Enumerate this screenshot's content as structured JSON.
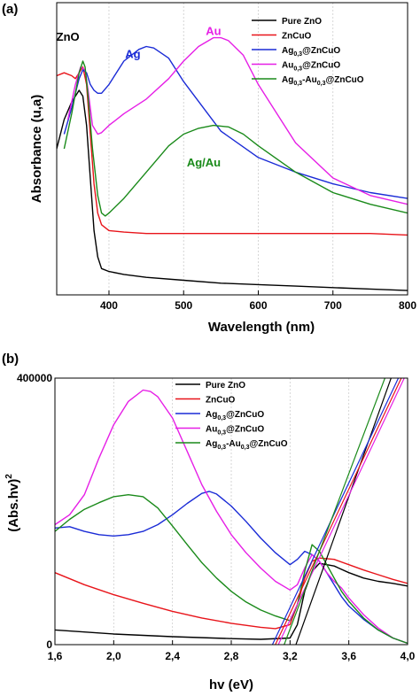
{
  "colors": {
    "pure_zno": "#000000",
    "zncuo": "#e8141a",
    "ag_zncuo": "#1a2bd6",
    "au_zncuo": "#e61fe6",
    "agau_zncuo": "#1a8a1a",
    "grid": "#cccccc"
  },
  "chart_data": [
    {
      "type": "line",
      "panel_label": "(a)",
      "xlabel": "Wavelength (nm)",
      "ylabel": "Absorbance (u,a)",
      "xlim": [
        330,
        800
      ],
      "ylim": [
        0,
        1
      ],
      "x_ticks": [
        400,
        500,
        600,
        700,
        800
      ],
      "x_tick_labels": [
        "400",
        "500",
        "600",
        "700",
        "800"
      ],
      "grid": "vertical dotted",
      "legend_position": "top-right",
      "legend": [
        {
          "label": "Pure ZnO",
          "color_key": "pure_zno"
        },
        {
          "label": "ZnCuO",
          "color_key": "zncuo"
        },
        {
          "label_parts": [
            "Ag",
            "0,3",
            "@ZnCuO"
          ],
          "color_key": "ag_zncuo"
        },
        {
          "label_parts": [
            "Au",
            "0,3",
            "@ZnCuO"
          ],
          "color_key": "au_zncuo"
        },
        {
          "label_parts": [
            "Ag",
            "0,3",
            "-Au",
            "0,3",
            "@ZnCuO"
          ],
          "color_key": "agau_zncuo"
        }
      ],
      "annotations": [
        {
          "text": "ZnO",
          "x": 345,
          "y": 0.87,
          "color_key": "pure_zno"
        },
        {
          "text": "Ag",
          "x": 432,
          "y": 0.81,
          "color_key": "ag_zncuo"
        },
        {
          "text": "Au",
          "x": 540,
          "y": 0.89,
          "color_key": "au_zncuo"
        },
        {
          "text": "Ag/Au",
          "x": 527,
          "y": 0.44,
          "color_key": "agau_zncuo"
        }
      ],
      "series": [
        {
          "name": "Pure ZnO",
          "color_key": "pure_zno",
          "x": [
            330,
            340,
            350,
            355,
            360,
            365,
            370,
            375,
            380,
            385,
            390,
            400,
            420,
            450,
            500,
            550,
            600,
            650,
            700,
            750,
            800
          ],
          "y": [
            0.5,
            0.6,
            0.66,
            0.68,
            0.7,
            0.68,
            0.58,
            0.4,
            0.22,
            0.13,
            0.09,
            0.08,
            0.07,
            0.06,
            0.05,
            0.04,
            0.035,
            0.03,
            0.025,
            0.02,
            0.015
          ]
        },
        {
          "name": "ZnCuO",
          "color_key": "zncuo",
          "x": [
            330,
            340,
            350,
            355,
            360,
            365,
            370,
            375,
            380,
            385,
            390,
            400,
            420,
            450,
            500,
            550,
            600,
            650,
            700,
            750,
            800
          ],
          "y": [
            0.75,
            0.76,
            0.75,
            0.74,
            0.76,
            0.78,
            0.72,
            0.55,
            0.38,
            0.28,
            0.24,
            0.22,
            0.215,
            0.21,
            0.21,
            0.21,
            0.21,
            0.21,
            0.21,
            0.21,
            0.205
          ]
        },
        {
          "name": "Ag@ZnCuO",
          "color_key": "ag_zncuo",
          "x": [
            340,
            350,
            360,
            365,
            370,
            375,
            380,
            385,
            390,
            400,
            420,
            440,
            450,
            460,
            480,
            500,
            550,
            600,
            650,
            700,
            750,
            800
          ],
          "y": [
            0.55,
            0.64,
            0.74,
            0.77,
            0.76,
            0.72,
            0.7,
            0.69,
            0.69,
            0.72,
            0.8,
            0.84,
            0.85,
            0.845,
            0.81,
            0.73,
            0.56,
            0.47,
            0.42,
            0.38,
            0.35,
            0.33
          ]
        },
        {
          "name": "Au@ZnCuO",
          "color_key": "au_zncuo",
          "x": [
            345,
            355,
            362,
            368,
            372,
            378,
            385,
            390,
            400,
            420,
            450,
            480,
            500,
            520,
            540,
            550,
            560,
            580,
            600,
            650,
            700,
            750,
            800
          ],
          "y": [
            0.6,
            0.72,
            0.78,
            0.77,
            0.7,
            0.58,
            0.55,
            0.555,
            0.58,
            0.62,
            0.67,
            0.74,
            0.8,
            0.85,
            0.88,
            0.88,
            0.87,
            0.82,
            0.72,
            0.52,
            0.4,
            0.34,
            0.31
          ]
        },
        {
          "name": "Ag-Au@ZnCuO",
          "color_key": "agau_zncuo",
          "x": [
            340,
            350,
            360,
            365,
            368,
            372,
            378,
            385,
            390,
            395,
            400,
            420,
            450,
            480,
            500,
            520,
            540,
            560,
            580,
            600,
            650,
            700,
            750,
            800
          ],
          "y": [
            0.5,
            0.62,
            0.76,
            0.8,
            0.78,
            0.68,
            0.5,
            0.34,
            0.28,
            0.27,
            0.28,
            0.33,
            0.42,
            0.51,
            0.55,
            0.57,
            0.58,
            0.575,
            0.55,
            0.51,
            0.42,
            0.35,
            0.31,
            0.28
          ]
        }
      ]
    },
    {
      "type": "line",
      "panel_label": "(b)",
      "xlabel": "hv (eV)",
      "ylabel_parts": [
        "(Abs.hv)",
        "2"
      ],
      "xlim": [
        1.6,
        4.0
      ],
      "ylim": [
        0,
        400000
      ],
      "x_ticks": [
        1.6,
        2.0,
        2.4,
        2.8,
        3.2,
        3.6,
        4.0
      ],
      "x_tick_labels": [
        "1,6",
        "2,0",
        "2,4",
        "2,8",
        "3,2",
        "3,6",
        "4,0"
      ],
      "y_ticks": [
        0,
        400000
      ],
      "y_tick_labels": [
        "0",
        "400000"
      ],
      "grid": "vertical dotted",
      "legend_position": "top-center",
      "legend": [
        {
          "label": "Pure ZnO",
          "color_key": "pure_zno"
        },
        {
          "label": "ZnCuO",
          "color_key": "zncuo"
        },
        {
          "label_parts": [
            "Ag",
            "0,3",
            "@ZnCuO"
          ],
          "color_key": "ag_zncuo"
        },
        {
          "label_parts": [
            "Au",
            "0,3",
            "@ZnCuO"
          ],
          "color_key": "au_zncuo"
        },
        {
          "label_parts": [
            "Ag",
            "0,3",
            "-Au",
            "0,3",
            "@ZnCuO"
          ],
          "color_key": "agau_zncuo"
        }
      ],
      "series": [
        {
          "name": "Pure ZnO",
          "color_key": "pure_zno",
          "x": [
            1.6,
            2.0,
            2.4,
            2.8,
            3.0,
            3.2,
            3.25,
            3.3,
            3.35,
            3.4,
            3.5,
            3.6,
            3.7,
            3.8,
            3.9,
            4.0
          ],
          "y": [
            22000,
            16000,
            12000,
            9000,
            8000,
            10000,
            30000,
            80000,
            110000,
            122000,
            118000,
            108000,
            100000,
            95000,
            92000,
            88000
          ]
        },
        {
          "name": "ZnCuO",
          "color_key": "zncuo",
          "x": [
            1.6,
            1.8,
            2.0,
            2.2,
            2.4,
            2.6,
            2.8,
            3.0,
            3.1,
            3.2,
            3.25,
            3.3,
            3.35,
            3.4,
            3.5,
            3.6,
            3.7,
            3.8,
            3.9,
            4.0
          ],
          "y": [
            108000,
            90000,
            75000,
            62000,
            50000,
            40000,
            32000,
            26000,
            24000,
            30000,
            60000,
            100000,
            125000,
            130000,
            128000,
            120000,
            112000,
            105000,
            98000,
            92000
          ]
        },
        {
          "name": "Ag@ZnCuO",
          "color_key": "ag_zncuo",
          "x": [
            1.6,
            1.7,
            1.8,
            1.9,
            2.0,
            2.1,
            2.2,
            2.3,
            2.4,
            2.5,
            2.6,
            2.65,
            2.7,
            2.8,
            2.9,
            3.0,
            3.1,
            3.2,
            3.25,
            3.3,
            3.35,
            3.4,
            3.45,
            3.5,
            3.55,
            3.6,
            3.7,
            3.8,
            3.9,
            4.0
          ],
          "y": [
            175000,
            177000,
            170000,
            165000,
            163000,
            165000,
            170000,
            180000,
            195000,
            212000,
            227000,
            230000,
            226000,
            208000,
            185000,
            160000,
            138000,
            120000,
            128000,
            140000,
            135000,
            125000,
            108000,
            90000,
            72000,
            58000,
            38000,
            22000,
            10000,
            2000
          ]
        },
        {
          "name": "Au@ZnCuO",
          "color_key": "au_zncuo",
          "x": [
            1.6,
            1.7,
            1.8,
            1.9,
            2.0,
            2.1,
            2.2,
            2.25,
            2.3,
            2.4,
            2.5,
            2.6,
            2.7,
            2.8,
            2.9,
            3.0,
            3.1,
            3.2,
            3.25,
            3.3,
            3.35,
            3.4,
            3.45,
            3.5,
            3.55,
            3.6,
            3.7,
            3.8,
            3.9,
            4.0
          ],
          "y": [
            180000,
            195000,
            225000,
            280000,
            330000,
            365000,
            382000,
            380000,
            372000,
            340000,
            290000,
            240000,
            200000,
            165000,
            138000,
            115000,
            95000,
            82000,
            90000,
            115000,
            135000,
            125000,
            108000,
            95000,
            85000,
            70000,
            45000,
            25000,
            10000,
            2000
          ]
        },
        {
          "name": "Ag-Au@ZnCuO",
          "color_key": "agau_zncuo",
          "x": [
            1.6,
            1.7,
            1.8,
            1.9,
            2.0,
            2.1,
            2.2,
            2.3,
            2.4,
            2.5,
            2.6,
            2.7,
            2.8,
            2.9,
            3.0,
            3.1,
            3.2,
            3.25,
            3.3,
            3.35,
            3.4,
            3.45,
            3.5,
            3.55,
            3.6,
            3.7,
            3.8,
            3.9,
            4.0
          ],
          "y": [
            170000,
            188000,
            203000,
            213000,
            222000,
            225000,
            222000,
            205000,
            178000,
            150000,
            123000,
            100000,
            80000,
            64000,
            52000,
            43000,
            36000,
            60000,
            110000,
            150000,
            140000,
            120000,
            100000,
            80000,
            65000,
            40000,
            22000,
            10000,
            2000
          ]
        }
      ],
      "bandgap_fits": [
        {
          "name": "Pure ZnO",
          "color_key": "pure_zno",
          "x0": 3.24,
          "x1": 3.92
        },
        {
          "name": "ZnCuO",
          "color_key": "zncuo",
          "x0": 3.1,
          "x1": 4.0
        },
        {
          "name": "Ag@ZnCuO",
          "color_key": "ag_zncuo",
          "x0": 3.08,
          "x1": 3.98
        },
        {
          "name": "Au@ZnCuO",
          "color_key": "au_zncuo",
          "x0": 3.12,
          "x1": 4.02
        },
        {
          "name": "Ag-Au@ZnCuO",
          "color_key": "agau_zncuo",
          "x0": 3.16,
          "x1": 3.88
        }
      ]
    }
  ]
}
